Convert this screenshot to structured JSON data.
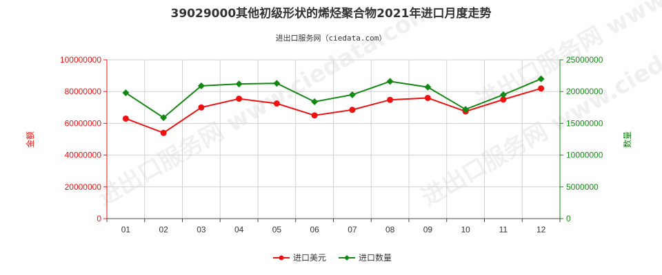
{
  "chart_data": {
    "type": "line",
    "title": "39029000其他初级形状的烯烃聚合物2021年进口月度走势",
    "subtitle": "进出口服务网（ciedata.com）",
    "watermark": "进出口服务网 www.ciedata.com",
    "categories": [
      "01",
      "02",
      "03",
      "04",
      "05",
      "06",
      "07",
      "08",
      "09",
      "10",
      "11",
      "12"
    ],
    "ylabel_left": "金额",
    "ylabel_right": "数量",
    "ylim_left": [
      0,
      100000000
    ],
    "ylim_right": [
      0,
      25000000
    ],
    "yticks_left": [
      "0",
      "20000000",
      "40000000",
      "60000000",
      "80000000",
      "100000000"
    ],
    "yticks_right": [
      "0",
      "5000000",
      "10000000",
      "15000000",
      "20000000",
      "25000000"
    ],
    "grid": true,
    "legend_position": "bottom-center",
    "series": [
      {
        "name": "进口美元",
        "axis": "left",
        "color": "#ee1111",
        "marker": "circle",
        "values": [
          63000000,
          54000000,
          70000000,
          75500000,
          72500000,
          65000000,
          68500000,
          74800000,
          76000000,
          67500000,
          75000000,
          82000000
        ]
      },
      {
        "name": "进口数量",
        "axis": "right",
        "color": "#118811",
        "marker": "diamond",
        "values": [
          19800000,
          15900000,
          20900000,
          21200000,
          21300000,
          18400000,
          19500000,
          21600000,
          20700000,
          17200000,
          19500000,
          22000000
        ]
      }
    ]
  }
}
